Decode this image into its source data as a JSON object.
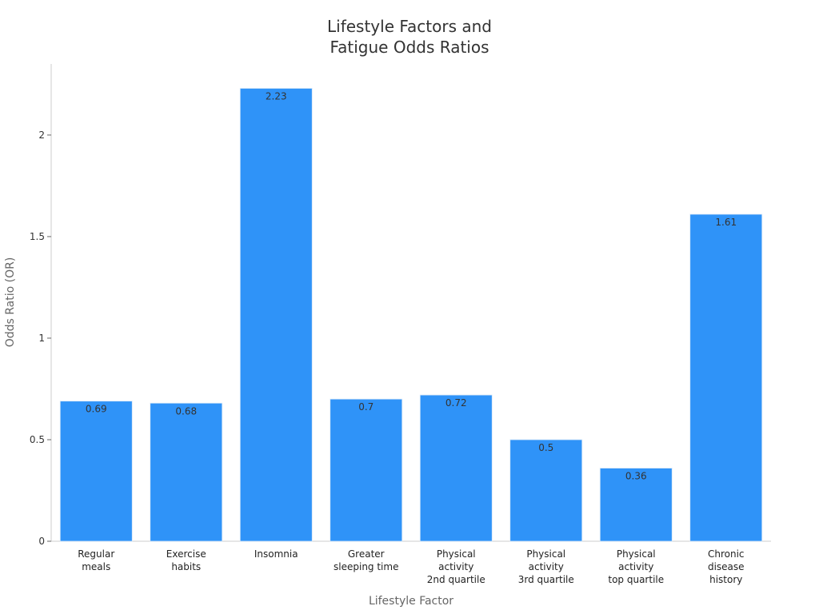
{
  "chart_data": {
    "type": "bar",
    "title": [
      "Lifestyle Factors and",
      "Fatigue Odds Ratios"
    ],
    "xlabel": "Lifestyle Factor",
    "ylabel": "Odds Ratio (OR)",
    "ylim": [
      0,
      2.35
    ],
    "yticks": [
      0,
      0.5,
      1,
      1.5,
      2
    ],
    "ytick_labels": [
      "0",
      "0.5",
      "1",
      "1.5",
      "2"
    ],
    "grid": false,
    "bar_color": "#2f93f8",
    "categories": [
      [
        "Regular",
        "meals"
      ],
      [
        "Exercise",
        "habits"
      ],
      [
        "Insomnia"
      ],
      [
        "Greater",
        "sleeping time"
      ],
      [
        "Physical",
        "activity",
        "2nd quartile"
      ],
      [
        "Physical",
        "activity",
        "3rd quartile"
      ],
      [
        "Physical",
        "activity",
        "top quartile"
      ],
      [
        "Chronic",
        "disease",
        "history"
      ]
    ],
    "values": [
      0.69,
      0.68,
      2.23,
      0.7,
      0.72,
      0.5,
      0.36,
      1.61
    ],
    "data_labels": [
      "0.69",
      "0.68",
      "2.23",
      "0.7",
      "0.72",
      "0.5",
      "0.36",
      "1.61"
    ]
  }
}
